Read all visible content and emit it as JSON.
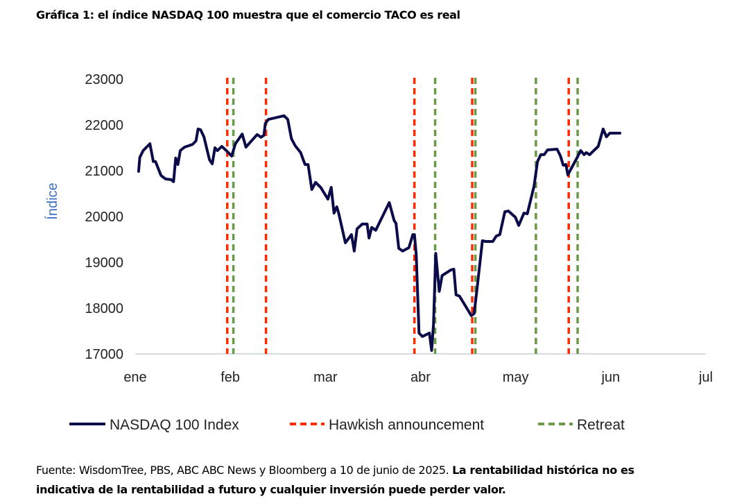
{
  "title": "Gráfica 1: el índice NASDAQ 100 muestra que el comercio TACO es real",
  "footer": {
    "normal": "Fuente: WisdomTree, PBS, ABC ABC News y Bloomberg a 10 de junio de 2025. ",
    "bold": "La rentabilidad histórica no es indicativa de la rentabilidad a futuro y cualquier inversión puede perder valor."
  },
  "chart_data": {
    "type": "line",
    "title": "Gráfica 1: el índice NASDAQ 100 muestra que el comercio TACO es real",
    "xlabel": "",
    "ylabel": "Índice",
    "x_units": "days since 1 Jan 2025",
    "xlim": [
      0,
      181
    ],
    "ylim": [
      17000,
      23000
    ],
    "yticks": [
      17000,
      18000,
      19000,
      20000,
      21000,
      22000,
      23000
    ],
    "xticks": [
      {
        "day": 0,
        "label": "ene"
      },
      {
        "day": 31,
        "label": "feb"
      },
      {
        "day": 59,
        "label": "mar"
      },
      {
        "day": 90,
        "label": "abr"
      },
      {
        "day": 120,
        "label": "may"
      },
      {
        "day": 151,
        "label": "jun"
      },
      {
        "day": 181,
        "label": "jul"
      }
    ],
    "grid": false,
    "legend_position": "bottom",
    "colors": {
      "index": "#0b0b4a",
      "hawkish": "#ff2a00",
      "retreat": "#6a9a45",
      "ylabel": "#3a6fc4",
      "axis": "#c8d0da"
    },
    "series": [
      {
        "name": "NASDAQ 100 Index",
        "x": [
          1.1,
          1.5,
          2.6,
          4.8,
          5.9,
          6.6,
          8.4,
          9.9,
          11.7,
          12.5,
          13.2,
          13.9,
          14.7,
          16.1,
          18.7,
          19.8,
          20.5,
          21.3,
          22.4,
          24.2,
          25.1,
          26.0,
          26.8,
          28.2,
          29.7,
          31.4,
          32.5,
          34.5,
          35.6,
          37.4,
          38.9,
          40.0,
          40.9,
          41.3,
          42.2,
          46.8,
          47.9,
          49.0,
          50.1,
          51.7,
          53.0,
          53.9,
          55.0,
          56.1,
          57.6,
          59.8,
          60.9,
          61.8,
          62.7,
          63.3,
          65.5,
          67.5,
          68.4,
          69.3,
          71.0,
          72.6,
          73.2,
          74.1,
          75.4,
          79.8,
          81.4,
          82.0,
          82.9,
          84.2,
          86.2,
          87.5,
          88.0,
          88.6,
          89.5,
          90.6,
          92.8,
          93.5,
          94.1,
          94.8,
          95.9,
          96.8,
          99.6,
          100.5,
          101.2,
          102.3,
          106.0,
          106.9,
          107.8,
          109.5,
          110.6,
          112.8,
          113.9,
          115.0,
          116.6,
          117.7,
          119.9,
          121.0,
          122.7,
          123.8,
          126.0,
          127.1,
          128.2,
          129.3,
          130.4,
          133.5,
          134.6,
          135.5,
          136.4,
          137.0,
          140.3,
          141.2,
          142.3,
          143.0,
          144.1,
          146.9,
          148.5,
          149.6,
          150.7,
          151.7,
          153.9
        ],
        "y": [
          20985,
          21290,
          21440,
          21590,
          21200,
          21200,
          20895,
          20820,
          20805,
          20760,
          21275,
          21135,
          21440,
          21515,
          21575,
          21650,
          21910,
          21895,
          21740,
          21240,
          21150,
          21500,
          21440,
          21530,
          21440,
          21320,
          21590,
          21800,
          21515,
          21665,
          21790,
          21730,
          21775,
          22030,
          22120,
          22200,
          22120,
          21700,
          21545,
          21395,
          21135,
          21135,
          20590,
          20745,
          20635,
          20380,
          20635,
          20075,
          20210,
          20075,
          19425,
          19605,
          19245,
          19730,
          19835,
          19835,
          19530,
          19760,
          19700,
          20305,
          19910,
          19850,
          19305,
          19245,
          19320,
          19605,
          19605,
          19165,
          17455,
          17380,
          17455,
          17075,
          17650,
          19195,
          18365,
          18710,
          18835,
          18850,
          18290,
          18260,
          17835,
          17880,
          18410,
          19470,
          19455,
          19455,
          19575,
          19605,
          20105,
          20120,
          19985,
          19805,
          20075,
          20060,
          20665,
          21195,
          21350,
          21350,
          21455,
          21470,
          21320,
          21120,
          21135,
          20910,
          21320,
          21440,
          21350,
          21395,
          21350,
          21530,
          21910,
          21740,
          21820,
          21820,
          21820
        ]
      }
    ],
    "events": {
      "hawkish": {
        "name": "Hawkish announcement",
        "days": [
          30,
          41.5,
          88,
          106.3,
          137.3
        ]
      },
      "retreat": {
        "name": "Retreat",
        "days": [
          31.9,
          94.6,
          107.3,
          126.6,
          140.2
        ]
      }
    }
  }
}
